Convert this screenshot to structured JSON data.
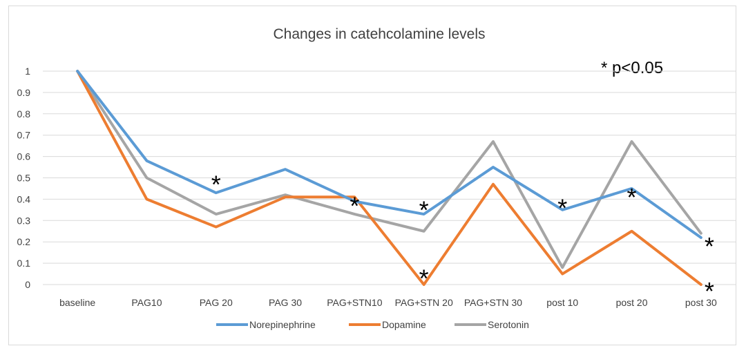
{
  "chart_data": {
    "type": "line",
    "title": "Changes in catehcolamine levels",
    "annotation": "* p<0.05",
    "categories": [
      "baseline",
      "PAG10",
      "PAG 20",
      "PAG 30",
      "PAG+STN10",
      "PAG+STN 20",
      "PAG+STN 30",
      "post 10",
      "post 20",
      "post 30"
    ],
    "ylim": [
      0,
      1
    ],
    "yticks": [
      "0",
      "0.1",
      "0.2",
      "0.3",
      "0.4",
      "0.5",
      "0.6",
      "0.7",
      "0.8",
      "0.9",
      "1"
    ],
    "grid": true,
    "legend_position": "bottom",
    "series": [
      {
        "name": "Norepinephrine",
        "color": "#5b9bd5",
        "values": [
          1,
          0.58,
          0.43,
          0.54,
          0.39,
          0.33,
          0.55,
          0.35,
          0.45,
          0.22
        ]
      },
      {
        "name": "Dopamine",
        "color": "#ed7d31",
        "values": [
          1,
          0.4,
          0.27,
          0.41,
          0.41,
          0.0,
          0.47,
          0.05,
          0.25,
          0.0
        ]
      },
      {
        "name": "Serotonin",
        "color": "#a5a5a5",
        "values": [
          1,
          0.5,
          0.33,
          0.42,
          0.33,
          0.25,
          0.67,
          0.08,
          0.67,
          0.24
        ]
      }
    ],
    "significance_markers": [
      {
        "symbol": "*",
        "category": "PAG 20",
        "value": 0.5
      },
      {
        "symbol": "*",
        "category": "PAG+STN10",
        "value": 0.4
      },
      {
        "symbol": "*",
        "category": "PAG+STN 20",
        "value": 0.38
      },
      {
        "symbol": "*",
        "category": "PAG+STN 20",
        "value": 0.06
      },
      {
        "symbol": "*",
        "category": "post 10",
        "value": 0.39
      },
      {
        "symbol": "*",
        "category": "post 20",
        "value": 0.44
      },
      {
        "symbol": "*",
        "category": "post 30",
        "value": 0.21
      },
      {
        "symbol": "*",
        "category": "post 30",
        "value": 0.0
      }
    ]
  }
}
